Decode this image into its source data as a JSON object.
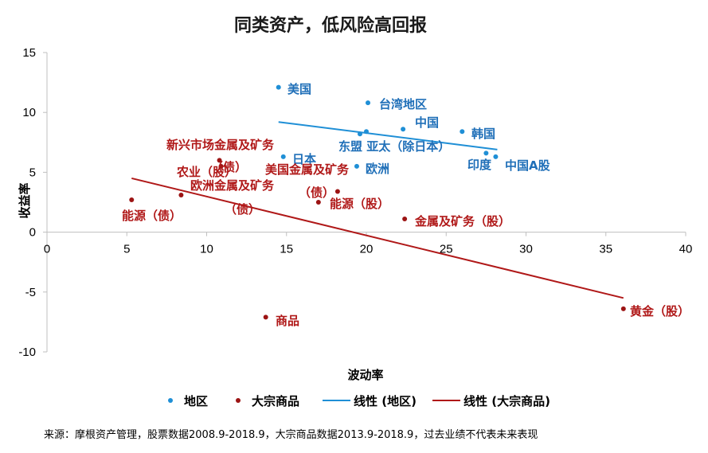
{
  "chart_data": {
    "type": "scatter",
    "title": "同类资产，低风险高回报",
    "xlabel": "波动率",
    "ylabel": "收益率",
    "xlim": [
      0,
      40
    ],
    "ylim": [
      -10,
      15
    ],
    "x_ticks": [
      "0",
      "5",
      "10",
      "15",
      "20",
      "25",
      "30",
      "35",
      "40"
    ],
    "y_ticks": [
      "15",
      "10",
      "5",
      "0",
      "-5",
      "-10"
    ],
    "colors": {
      "region": "#1f8fd6",
      "commodity": "#9c1414",
      "text_region": "#1f6fb8",
      "text_commodity": "#b01818"
    },
    "series": [
      {
        "name": "地区",
        "points": [
          {
            "label": "美国",
            "x": 14.5,
            "y": 12.1
          },
          {
            "label": "台湾地区",
            "x": 20.1,
            "y": 10.8
          },
          {
            "label": "中国",
            "x": 22.3,
            "y": 8.6
          },
          {
            "label": "韩国",
            "x": 26.0,
            "y": 8.4
          },
          {
            "label": "东盟 亚太（除日本）",
            "x": 19.6,
            "y": 8.2
          },
          {
            "label": "",
            "x": 20.0,
            "y": 8.4
          },
          {
            "label": "日本",
            "x": 14.8,
            "y": 6.3
          },
          {
            "label": "欧洲",
            "x": 19.4,
            "y": 5.5
          },
          {
            "label": "印度",
            "x": 27.5,
            "y": 6.6
          },
          {
            "label": "中国A股",
            "x": 28.1,
            "y": 6.3
          }
        ]
      },
      {
        "name": "大宗商品",
        "points": [
          {
            "label": "新兴市场金属及矿务（债）",
            "x": 10.8,
            "y": 6.0
          },
          {
            "label": "农业（股）",
            "x": 10.9,
            "y": 5.5
          },
          {
            "label": "欧洲金属及矿务（债）",
            "x": 8.4,
            "y": 3.1
          },
          {
            "label": "美国金属及矿务（债）",
            "x": 17.0,
            "y": 2.5
          },
          {
            "label": "能源（债）",
            "x": 5.3,
            "y": 2.7
          },
          {
            "label": "能源（股）",
            "x": 18.2,
            "y": 3.4
          },
          {
            "label": "金属及矿务（股）",
            "x": 22.4,
            "y": 1.1
          },
          {
            "label": "商品",
            "x": 13.7,
            "y": -7.1
          },
          {
            "label": "黄金（股）",
            "x": 36.1,
            "y": -6.4
          }
        ]
      }
    ],
    "trendlines": [
      {
        "name": "线性 (地区)",
        "x": [
          14.5,
          28.2
        ],
        "y": [
          9.2,
          6.9
        ]
      },
      {
        "name": "线性 (大宗商品)",
        "x": [
          5.3,
          36.1
        ],
        "y": [
          4.5,
          -5.5
        ]
      }
    ],
    "legend": [
      "地区",
      "大宗商品",
      "线性 (地区)",
      "线性 (大宗商品)"
    ]
  },
  "labels": {
    "region": {
      "us": "美国",
      "tw": "台湾地区",
      "cn": "中国",
      "kr": "韩国",
      "asean": "东盟 亚太（除日本）",
      "jp": "日本",
      "eu": "欧洲",
      "in": "印度",
      "cna": "中国A股"
    },
    "commodity": {
      "em_metal_1": "新兴市场金属及矿务",
      "em_metal_2": "（债）",
      "agri": "农业（股）",
      "eu_metal_1": "欧洲金属及矿务",
      "eu_metal_2": "（债）",
      "us_metal_1": "美国金属及矿务",
      "us_metal_2": "（债）",
      "energy_bond": "能源（债）",
      "energy_eq": "能源（股）",
      "metal_eq": "金属及矿务（股）",
      "commodities": "商品",
      "gold": "黄金（股）"
    }
  },
  "source": "来源：摩根资产管理，股票数据2008.9-2018.9，大宗商品数据2013.9-2018.9，过去业绩不代表未来表现"
}
